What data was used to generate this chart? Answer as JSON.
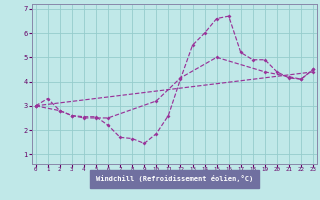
{
  "background_color": "#c0e8e8",
  "grid_color": "#96cccc",
  "line_color": "#993399",
  "tick_color": "#660066",
  "label_bg": "#7070a0",
  "xlabel": "Windchill (Refroidissement éolien,°C)",
  "xlim": [
    -0.3,
    23.3
  ],
  "ylim": [
    0.6,
    7.2
  ],
  "xticks": [
    0,
    1,
    2,
    3,
    4,
    5,
    6,
    7,
    8,
    9,
    10,
    11,
    12,
    13,
    14,
    15,
    16,
    17,
    18,
    19,
    20,
    21,
    22,
    23
  ],
  "yticks": [
    1,
    2,
    3,
    4,
    5,
    6,
    7
  ],
  "series1_x": [
    0,
    1,
    2,
    3,
    4,
    5,
    6,
    7,
    8,
    9,
    10,
    11,
    12,
    13,
    14,
    15,
    16,
    17,
    18,
    19,
    20,
    21,
    22,
    23
  ],
  "series1_y": [
    3.0,
    3.3,
    2.8,
    2.6,
    2.55,
    2.55,
    2.2,
    1.7,
    1.65,
    1.45,
    1.85,
    2.6,
    4.1,
    5.5,
    6.0,
    6.6,
    6.7,
    5.2,
    4.9,
    4.9,
    4.4,
    4.15,
    4.1,
    4.5
  ],
  "series2_x": [
    0,
    2,
    3,
    4,
    5,
    6,
    10,
    12,
    15,
    19,
    21,
    22,
    23
  ],
  "series2_y": [
    3.0,
    2.8,
    2.6,
    2.5,
    2.5,
    2.5,
    3.2,
    4.15,
    5.0,
    4.4,
    4.2,
    4.1,
    4.5
  ],
  "series3_x": [
    0,
    23
  ],
  "series3_y": [
    3.0,
    4.4
  ]
}
